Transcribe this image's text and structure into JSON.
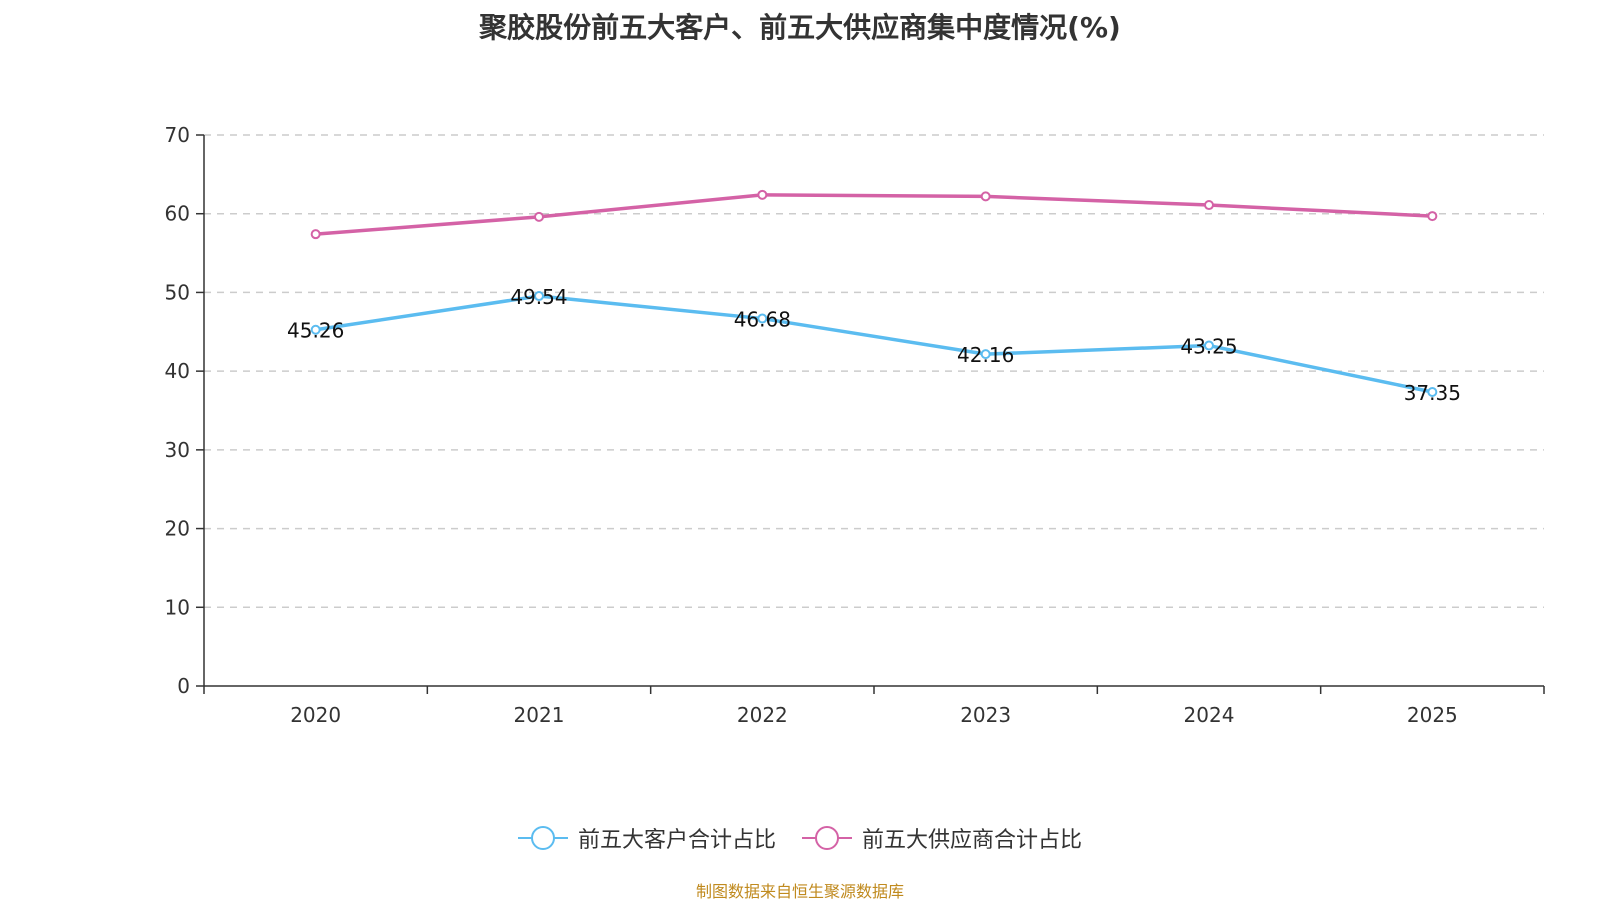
{
  "chart_data": {
    "type": "line",
    "title": "聚胶股份前五大客户、前五大供应商集中度情况(%)",
    "categories": [
      "2020",
      "2021",
      "2022",
      "2023",
      "2024",
      "2025"
    ],
    "series": [
      {
        "name": "前五大客户合计占比",
        "values": [
          45.26,
          49.54,
          46.68,
          42.16,
          43.25,
          37.35
        ],
        "color": "#5bbcf0",
        "show_labels": true
      },
      {
        "name": "前五大供应商合计占比",
        "values": [
          57.4,
          59.6,
          62.4,
          62.2,
          61.1,
          59.7
        ],
        "color": "#d462a6",
        "show_labels": false
      }
    ],
    "ylim": [
      0,
      70
    ],
    "yticks": [
      0,
      10,
      20,
      30,
      40,
      50,
      60,
      70
    ],
    "xlabel": "",
    "ylabel": "",
    "grid": true,
    "legend": "bottom-center"
  },
  "source_note": "制图数据来自恒生聚源数据库"
}
